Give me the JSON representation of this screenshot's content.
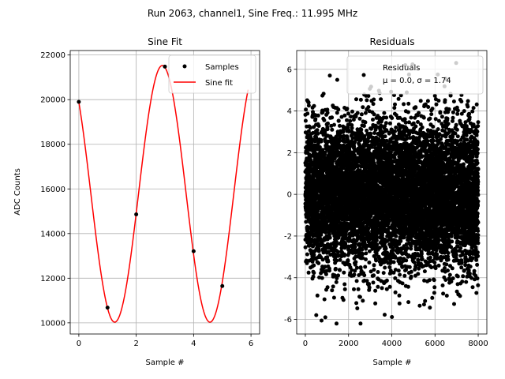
{
  "suptitle": "Run 2063, channel1, Sine Freq.: 11.995 MHz",
  "chart_data": [
    {
      "type": "scatter",
      "title": "Sine Fit",
      "xlabel": "Sample #",
      "ylabel": "ADC Counts",
      "xlim": [
        -0.3,
        6.3
      ],
      "ylim": [
        9500,
        22200
      ],
      "xticks": [
        0,
        2,
        4,
        6
      ],
      "yticks": [
        10000,
        12000,
        14000,
        16000,
        18000,
        20000,
        22000
      ],
      "grid": true,
      "legend_position": "top-right",
      "series": [
        {
          "name": "Samples",
          "kind": "points",
          "color": "#000000",
          "x": [
            0,
            1,
            2,
            3,
            4,
            5
          ],
          "y": [
            19900,
            10680,
            14860,
            21480,
            13210,
            11650
          ]
        },
        {
          "name": "Sine fit",
          "kind": "line",
          "color": "#ff0000",
          "x_range": [
            0,
            5.9
          ],
          "model": {
            "offset": 15780,
            "amplitude": 5750,
            "period": 3.32,
            "phase_ref_x": 2.91
          }
        }
      ]
    },
    {
      "type": "scatter",
      "title": "Residuals",
      "xlabel": "Sample #",
      "ylabel": "",
      "xlim": [
        -400,
        8400
      ],
      "ylim": [
        -6.7,
        6.9
      ],
      "xticks": [
        0,
        2000,
        4000,
        6000,
        8000
      ],
      "yticks": [
        -6,
        -4,
        -2,
        0,
        2,
        4,
        6
      ],
      "grid": true,
      "legend_position": "top-right",
      "legend_entry": "Residuals",
      "stats_text": "μ = 0.0, σ = 1.74",
      "stats": {
        "mean": 0.0,
        "std": 1.74
      },
      "n_points": 8000,
      "x_range": [
        0,
        8000
      ],
      "marker_color": "#000000"
    }
  ]
}
